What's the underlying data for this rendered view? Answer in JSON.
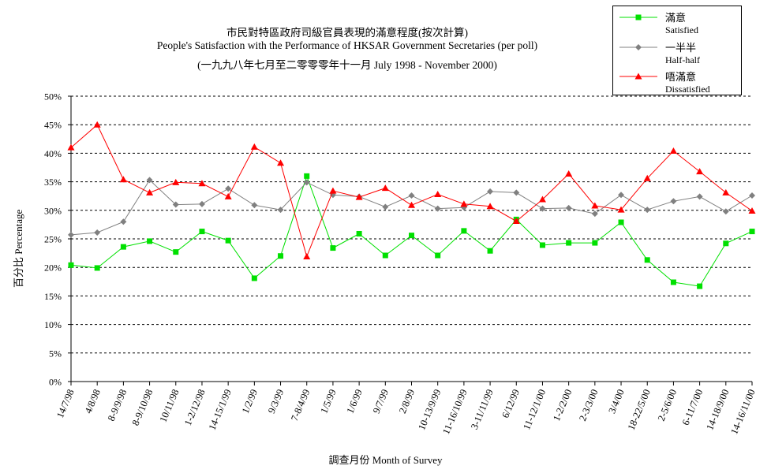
{
  "chart_data": {
    "type": "line",
    "title": "市民對特區政府司級官員表現的滿意程度(按次計算)",
    "subtitle": "People's Satisfaction with the Performance of HKSAR Government Secretaries (per poll)",
    "subtitle2": "(一九九八年七月至二零零零年十一月 July 1998 -  November 2000)",
    "xlabel": "調查月份 Month of Survey",
    "ylabel": "百分比 Percentage",
    "ylim": [
      0,
      50
    ],
    "yticks": [
      0,
      5,
      10,
      15,
      20,
      25,
      30,
      35,
      40,
      45,
      50
    ],
    "ytick_labels": [
      "0%",
      "5%",
      "10%",
      "15%",
      "20%",
      "25%",
      "30%",
      "35%",
      "40%",
      "45%",
      "50%"
    ],
    "grid": "horizontal-dashed",
    "legend_position": "top-right",
    "categories": [
      "14/7/98",
      "4/8/98",
      "8-9/9/98",
      "8-9/10/98",
      "10/11/98",
      "1-2/12/98",
      "14-15/1/99",
      "1/2/99",
      "9/3/99",
      "7-8/4/99",
      "1/5/99",
      "1/6/99",
      "9/7/99",
      "2/8/99",
      "10-13/9/99",
      "11-16/10/99",
      "3-11/11/99",
      "6/12/99",
      "11-12/1/00",
      "1-2/2/00",
      "2-3/3/00",
      "3/4/00",
      "18-22/5/00",
      "2-5/6/00",
      "6-11/7/00",
      "14-18/9/00",
      "14-16/11/00"
    ],
    "series": [
      {
        "name": "滿意",
        "name_en": "Satisfied",
        "color": "#00e000",
        "marker": "square",
        "values": [
          20.4,
          19.9,
          23.6,
          24.6,
          22.7,
          26.3,
          24.7,
          18.1,
          22.0,
          36.0,
          23.4,
          25.9,
          22.1,
          25.6,
          22.1,
          26.4,
          22.9,
          28.4,
          23.9,
          24.3,
          24.3,
          27.9,
          21.3,
          17.4,
          16.7,
          24.2,
          26.3
        ]
      },
      {
        "name": "一半半",
        "name_en": "Half-half",
        "color": "#808080",
        "marker": "diamond",
        "values": [
          25.7,
          26.1,
          28.0,
          35.3,
          31.0,
          31.1,
          33.8,
          30.9,
          30.1,
          34.9,
          32.7,
          32.4,
          30.6,
          32.6,
          30.3,
          30.5,
          33.3,
          33.1,
          30.3,
          30.4,
          29.4,
          32.7,
          30.1,
          31.6,
          32.4,
          29.8,
          32.6
        ]
      },
      {
        "name": "唔滿意",
        "name_en": "Dissatisfied",
        "color": "#ff0000",
        "marker": "triangle",
        "values": [
          41.0,
          45.0,
          35.4,
          33.1,
          34.9,
          34.7,
          32.4,
          41.1,
          38.3,
          21.9,
          33.4,
          32.3,
          33.9,
          30.9,
          32.8,
          31.1,
          30.7,
          28.1,
          31.9,
          36.4,
          30.8,
          30.1,
          35.6,
          40.4,
          36.8,
          33.1,
          29.9
        ]
      }
    ]
  }
}
